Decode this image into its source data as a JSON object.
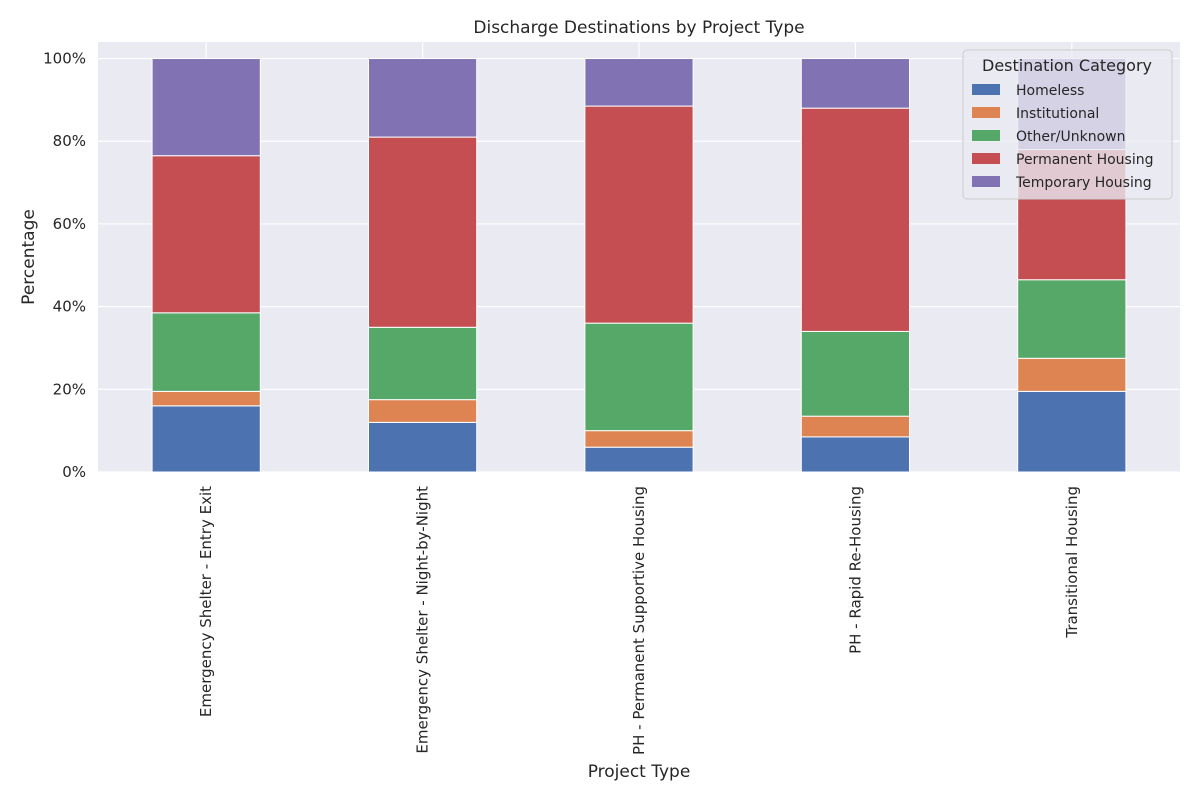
{
  "chart_data": {
    "type": "bar",
    "stacked": true,
    "title": "Discharge Destinations by Project Type",
    "xlabel": "Project Type",
    "ylabel": "Percentage",
    "ylim": [
      0,
      1.04
    ],
    "yticks": [
      0,
      0.2,
      0.4,
      0.6,
      0.8,
      1.0
    ],
    "ytick_labels": [
      "0%",
      "20%",
      "40%",
      "60%",
      "80%",
      "100%"
    ],
    "grid": true,
    "legend": {
      "title": "Destination Category",
      "placement": "top-right"
    },
    "categories": [
      "Emergency Shelter - Entry Exit",
      "Emergency Shelter - Night-by-Night",
      "PH - Permanent Supportive Housing",
      "PH - Rapid Re-Housing",
      "Transitional Housing"
    ],
    "series": [
      {
        "name": "Homeless",
        "color": "#4c72b0",
        "values": [
          0.16,
          0.12,
          0.06,
          0.085,
          0.195
        ]
      },
      {
        "name": "Institutional",
        "color": "#dd8452",
        "values": [
          0.035,
          0.055,
          0.04,
          0.05,
          0.08
        ]
      },
      {
        "name": "Other/Unknown",
        "color": "#55a868",
        "values": [
          0.19,
          0.175,
          0.26,
          0.205,
          0.19
        ]
      },
      {
        "name": "Permanent Housing",
        "color": "#c44e52",
        "values": [
          0.38,
          0.46,
          0.525,
          0.54,
          0.315
        ]
      },
      {
        "name": "Temporary Housing",
        "color": "#8172b3",
        "values": [
          0.235,
          0.19,
          0.115,
          0.12,
          0.22
        ]
      }
    ]
  }
}
